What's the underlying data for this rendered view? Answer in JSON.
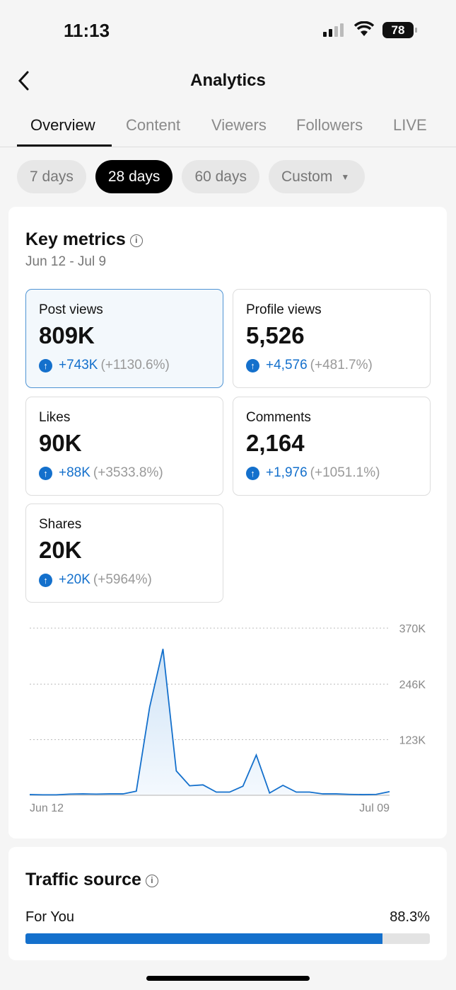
{
  "status": {
    "time": "11:13",
    "battery": "78"
  },
  "header": {
    "title": "Analytics"
  },
  "tabs": [
    "Overview",
    "Content",
    "Viewers",
    "Followers",
    "LIVE"
  ],
  "ranges": [
    "7 days",
    "28 days",
    "60 days",
    "Custom"
  ],
  "key_metrics": {
    "title": "Key metrics",
    "date_range": "Jun 12 - Jul 9",
    "metrics": [
      {
        "label": "Post views",
        "value": "809K",
        "delta": "+743K",
        "pct": "(+1130.6%)"
      },
      {
        "label": "Profile views",
        "value": "5,526",
        "delta": "+4,576",
        "pct": "(+481.7%)"
      },
      {
        "label": "Likes",
        "value": "90K",
        "delta": "+88K",
        "pct": "(+3533.8%)"
      },
      {
        "label": "Comments",
        "value": "2,164",
        "delta": "+1,976",
        "pct": "(+1051.1%)"
      },
      {
        "label": "Shares",
        "value": "20K",
        "delta": "+20K",
        "pct": "(+5964%)"
      }
    ]
  },
  "chart_data": {
    "type": "area",
    "title": "Post views",
    "x_start": "Jun 12",
    "x_end": "Jul 09",
    "yticks": [
      "370K",
      "246K",
      "123K"
    ],
    "ytick_values": [
      370000,
      246000,
      123000
    ],
    "ylim": [
      0,
      370000
    ],
    "values": [
      1500,
      1000,
      1000,
      2600,
      3000,
      2600,
      3000,
      3000,
      9000,
      195000,
      324000,
      54000,
      21000,
      23000,
      7000,
      7000,
      20000,
      89000,
      5000,
      22000,
      7000,
      7000,
      3000,
      3000,
      2000,
      1500,
      2000,
      8000
    ],
    "color": "#1470cc"
  },
  "traffic": {
    "title": "Traffic source",
    "items": [
      {
        "label": "For You",
        "value": "88.3%",
        "fraction": 0.883
      }
    ]
  }
}
